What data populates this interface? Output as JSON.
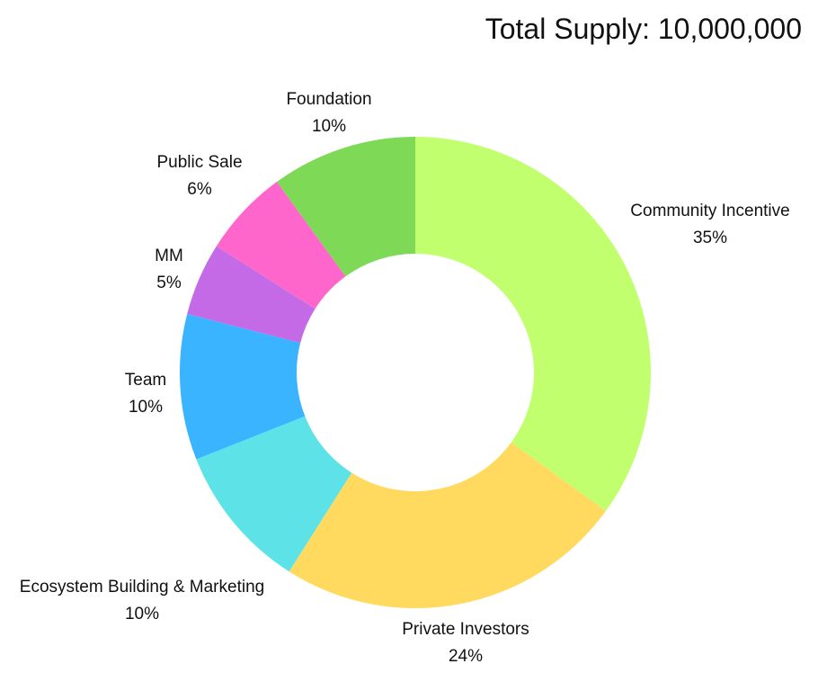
{
  "header": {
    "total_supply": "Total Supply: 10,000,000"
  },
  "chart_data": {
    "type": "pie",
    "variant": "donut",
    "start_angle_deg_from_top": 0,
    "direction": "clockwise",
    "slices": [
      {
        "label": "Community Incentive",
        "value": 35,
        "display": "35%",
        "color": "#C1FF6F"
      },
      {
        "label": "Private Investors",
        "value": 24,
        "display": "24%",
        "color": "#FFDA5E"
      },
      {
        "label": "Ecosystem Building & Marketing",
        "value": 10,
        "display": "10%",
        "color": "#5DE3E7"
      },
      {
        "label": "Team",
        "value": 10,
        "display": "10%",
        "color": "#3AB4FF"
      },
      {
        "label": "MM",
        "value": 5,
        "display": "5%",
        "color": "#C56AE6"
      },
      {
        "label": "Public Sale",
        "value": 6,
        "display": "6%",
        "color": "#FF66CC"
      },
      {
        "label": "Foundation",
        "value": 10,
        "display": "10%",
        "color": "#7ED957"
      }
    ]
  }
}
